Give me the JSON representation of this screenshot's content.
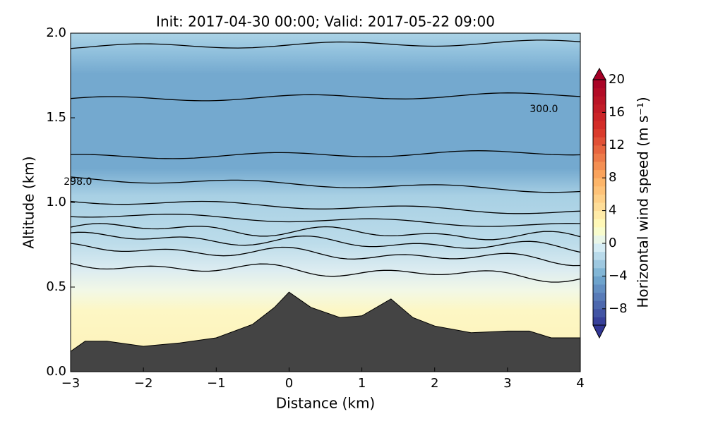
{
  "chart_data": {
    "type": "contour",
    "title": "Init: 2017-04-30 00:00; Valid: 2017-05-22 09:00",
    "xlabel": "Distance (km)",
    "ylabel": "Altitude (km)",
    "xlim": [
      -3,
      4
    ],
    "ylim": [
      0,
      2.0
    ],
    "xticks": [
      {
        "value": -3,
        "label": "−3"
      },
      {
        "value": -2,
        "label": "−2"
      },
      {
        "value": -1,
        "label": "−1"
      },
      0,
      1,
      2,
      3,
      4
    ],
    "yticks": [
      {
        "value": 0,
        "label": "0.0"
      },
      0.5,
      {
        "value": 1,
        "label": "1.0"
      },
      1.5,
      {
        "value": 2,
        "label": "2.0"
      }
    ],
    "terrain": {
      "color": "#444444",
      "distance": [
        -3,
        -2.8,
        -2.5,
        -2,
        -1.5,
        -1,
        -0.5,
        -0.2,
        0,
        0.3,
        0.7,
        1,
        1.4,
        1.7,
        2,
        2.5,
        3,
        3.3,
        3.6,
        4
      ],
      "altitude": [
        0.12,
        0.18,
        0.18,
        0.15,
        0.17,
        0.2,
        0.28,
        0.38,
        0.47,
        0.38,
        0.32,
        0.33,
        0.43,
        0.32,
        0.27,
        0.23,
        0.24,
        0.24,
        0.2,
        0.2
      ]
    },
    "contour_labels": [
      {
        "text": "300.0",
        "x": 3.5,
        "y": 1.55
      },
      {
        "text": "298.0",
        "x": -2.9,
        "y": 1.12
      }
    ],
    "colorbar": {
      "label": "Horizontal wind speed (m s⁻¹)",
      "lim": [
        -10,
        20
      ],
      "ticks": [
        20,
        16,
        12,
        8,
        4,
        0,
        {
          "value": -4,
          "label": "−4"
        },
        {
          "value": -8,
          "label": "−8"
        }
      ]
    }
  }
}
